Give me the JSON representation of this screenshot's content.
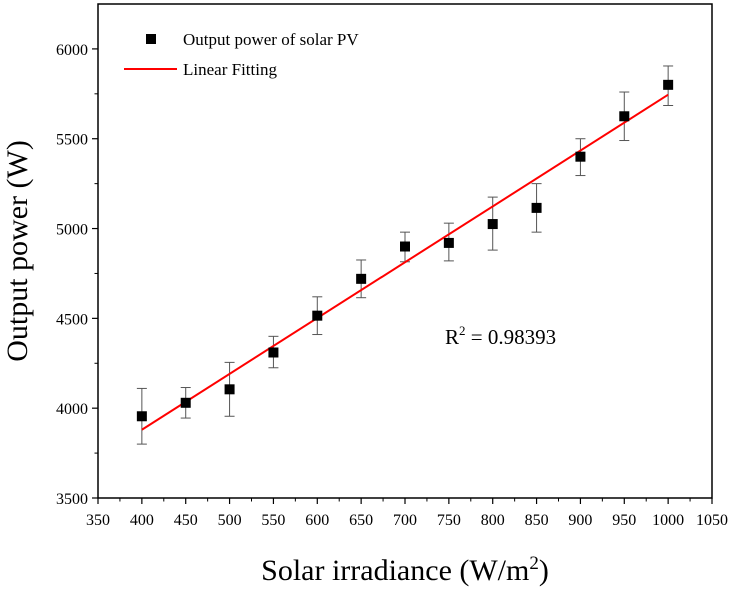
{
  "chart_data": {
    "type": "scatter",
    "xlabel": "Solar irradiance (W/m",
    "xlabel_sup": "2",
    "xlabel_end": ")",
    "ylabel": "Output power (W)",
    "xlim": [
      350,
      1050
    ],
    "ylim": [
      3500,
      6250
    ],
    "x_ticks": [
      350,
      400,
      450,
      500,
      550,
      600,
      650,
      700,
      750,
      800,
      850,
      900,
      950,
      1000,
      1050
    ],
    "y_ticks": [
      3500,
      4000,
      4500,
      5000,
      5500,
      6000
    ],
    "series": [
      {
        "name": "Output power of solar PV",
        "kind": "scatter",
        "marker": "square",
        "color": "#000000",
        "x": [
          400,
          450,
          500,
          550,
          600,
          650,
          700,
          750,
          800,
          850,
          900,
          950,
          1000
        ],
        "y": [
          3955,
          4030,
          4105,
          4310,
          4515,
          4720,
          4900,
          4920,
          5025,
          5115,
          5400,
          5625,
          5800
        ],
        "err_low": [
          3800,
          3945,
          3955,
          4225,
          4410,
          4615,
          4815,
          4820,
          4880,
          4980,
          5295,
          5490,
          5685
        ],
        "err_high": [
          4110,
          4115,
          4255,
          4400,
          4620,
          4825,
          4980,
          5030,
          5175,
          5250,
          5500,
          5760,
          5905
        ]
      },
      {
        "name": "Linear Fitting",
        "kind": "line",
        "color": "#ff0000",
        "x": [
          400,
          1000
        ],
        "y": [
          3880,
          5745
        ]
      }
    ],
    "annotation": {
      "text_base": "R",
      "text_sup": "2",
      "text_rest": " = 0.98393"
    },
    "legend_position": "top-left"
  }
}
